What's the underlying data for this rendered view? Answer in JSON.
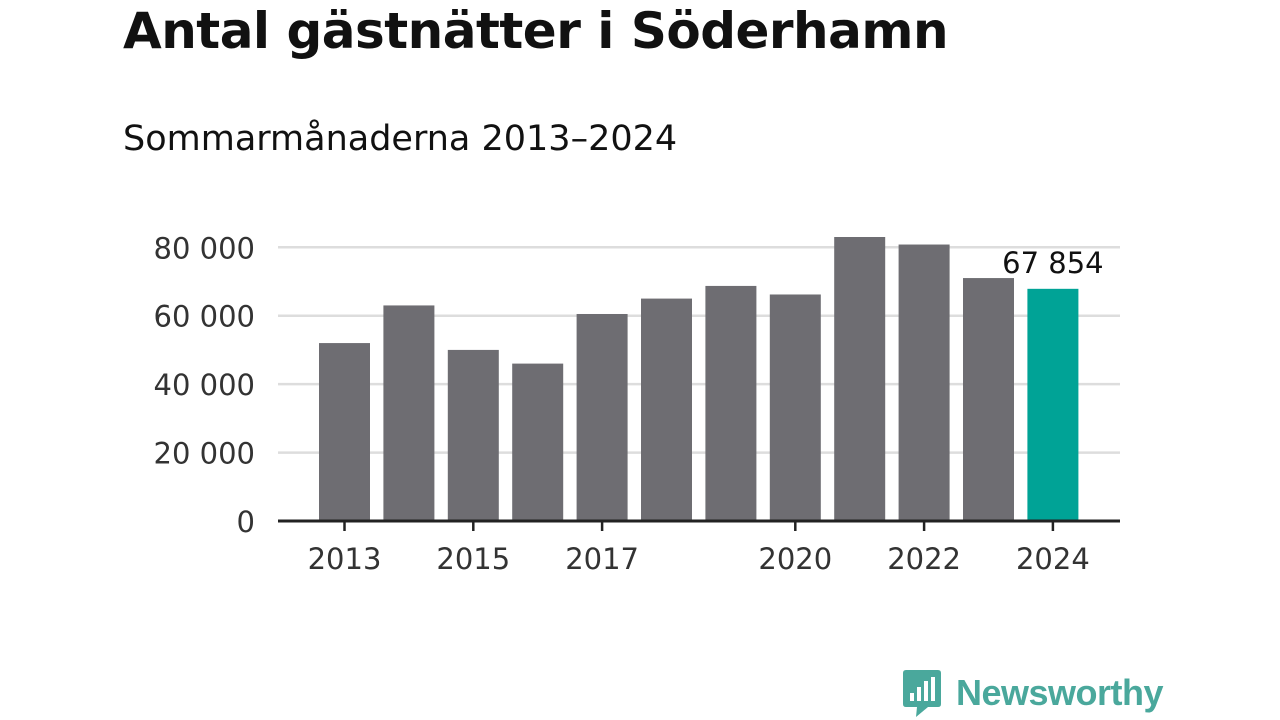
{
  "title": "Antal gästnätter i Söderhamn",
  "subtitle": "Sommarmånaderna 2013–2024",
  "brand": {
    "name": "Newsworthy",
    "color": "#4aa89c"
  },
  "colors": {
    "bar": "#6e6d72",
    "highlight": "#00a396",
    "grid": "#dddddd",
    "axis": "#222222",
    "text": "#333333"
  },
  "chart_data": {
    "type": "bar",
    "categories": [
      "2013",
      "2014",
      "2015",
      "2016",
      "2017",
      "2018",
      "2019",
      "2020",
      "2021",
      "2022",
      "2023",
      "2024"
    ],
    "values": [
      52000,
      63000,
      50000,
      46000,
      60500,
      65000,
      68700,
      66200,
      83000,
      80800,
      71000,
      67854
    ],
    "highlight_index": 11,
    "value_label": "67 854",
    "x_tick_labels": [
      "2013",
      "2015",
      "2017",
      "2020",
      "2022",
      "2024"
    ],
    "y_ticks": [
      0,
      20000,
      40000,
      60000,
      80000
    ],
    "y_tick_labels": [
      "0",
      "20 000",
      "40 000",
      "60 000",
      "80 000"
    ],
    "ylim": [
      0,
      85000
    ],
    "grid": true
  }
}
